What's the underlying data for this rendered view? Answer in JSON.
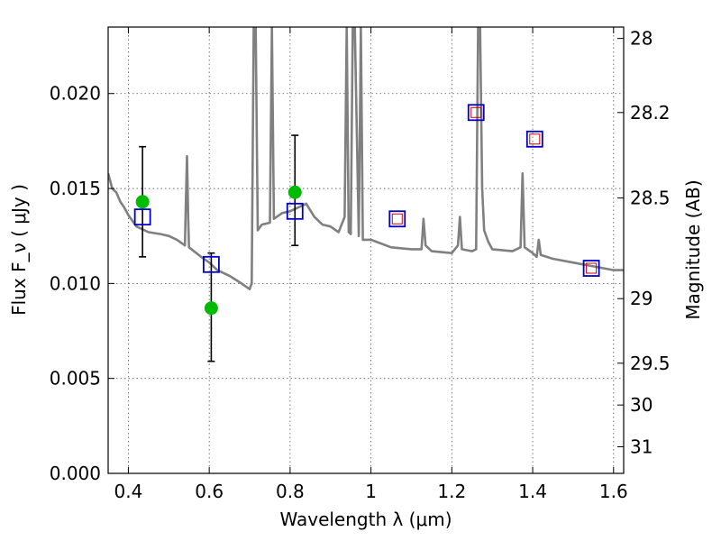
{
  "chart_data": {
    "type": "scatter",
    "xlabel": "Wavelength  λ (μm)",
    "ylabel": "Flux  F_ν  ( μJy )",
    "ylabel_right": "Magnitude (AB)",
    "xlim": [
      0.35,
      1.625
    ],
    "ylim": [
      0.0,
      0.0235
    ],
    "grid": true,
    "x_ticks": [
      0.4,
      0.6,
      0.8,
      1.0,
      1.2,
      1.4,
      1.6
    ],
    "x_tick_labels": [
      "0.4",
      "0.6",
      "0.8",
      "1",
      "1.2",
      "1.4",
      "1.6"
    ],
    "y_ticks": [
      0.0,
      0.005,
      0.01,
      0.015,
      0.02
    ],
    "y_tick_labels": [
      "0.000",
      "0.005",
      "0.010",
      "0.015",
      "0.020"
    ],
    "right_axis_ticks": [
      {
        "flux": 0.0229,
        "label": "28"
      },
      {
        "flux": 0.019,
        "label": "28.2"
      },
      {
        "flux": 0.0145,
        "label": "28.5"
      },
      {
        "flux": 0.0092,
        "label": "29"
      },
      {
        "flux": 0.0058,
        "label": "29.5"
      },
      {
        "flux": 0.0036,
        "label": "30"
      },
      {
        "flux": 0.0014,
        "label": "31"
      }
    ],
    "colors": {
      "template": "#808080",
      "model_squares": "#0000cc",
      "model_inner_squares": "#cc0000",
      "observed_points": "#00bb00",
      "error_bars": "#000000",
      "grid": "#555555"
    },
    "series": [
      {
        "marker": "line",
        "x": [
          0.35,
          0.36,
          0.37,
          0.38,
          0.39,
          0.4,
          0.42,
          0.45,
          0.48,
          0.5,
          0.52,
          0.54,
          0.542,
          0.545,
          0.548,
          0.55,
          0.58,
          0.6,
          0.62,
          0.65,
          0.68,
          0.7,
          0.705,
          0.71,
          0.715,
          0.72,
          0.73,
          0.75,
          0.755,
          0.76,
          0.78,
          0.8,
          0.82,
          0.84,
          0.86,
          0.88,
          0.9,
          0.92,
          0.935,
          0.94,
          0.945,
          0.95,
          0.955,
          0.96,
          0.97,
          0.975,
          0.98,
          1.0,
          1.05,
          1.1,
          1.125,
          1.13,
          1.135,
          1.15,
          1.2,
          1.215,
          1.22,
          1.225,
          1.25,
          1.26,
          1.265,
          1.27,
          1.275,
          1.28,
          1.29,
          1.3,
          1.35,
          1.37,
          1.375,
          1.38,
          1.4,
          1.41,
          1.415,
          1.42,
          1.45,
          1.5,
          1.55,
          1.6,
          1.625
        ],
        "y": [
          0.0158,
          0.015,
          0.0148,
          0.0143,
          0.014,
          0.0136,
          0.013,
          0.0127,
          0.0126,
          0.0125,
          0.0123,
          0.012,
          0.014,
          0.0167,
          0.0135,
          0.0119,
          0.0114,
          0.0111,
          0.0107,
          0.0104,
          0.01,
          0.0097,
          0.01,
          0.0235,
          0.0235,
          0.0128,
          0.0131,
          0.0132,
          0.0235,
          0.0134,
          0.0137,
          0.0138,
          0.014,
          0.0142,
          0.0135,
          0.0131,
          0.013,
          0.0127,
          0.0135,
          0.0235,
          0.0127,
          0.0126,
          0.0235,
          0.0235,
          0.0125,
          0.0235,
          0.0123,
          0.0123,
          0.0119,
          0.0118,
          0.0118,
          0.0134,
          0.012,
          0.0117,
          0.0116,
          0.012,
          0.0135,
          0.0118,
          0.0117,
          0.0118,
          0.0235,
          0.0235,
          0.015,
          0.0128,
          0.0122,
          0.0118,
          0.0117,
          0.0119,
          0.0158,
          0.0119,
          0.0116,
          0.0114,
          0.0123,
          0.0115,
          0.0113,
          0.0111,
          0.0109,
          0.0107,
          0.0107
        ]
      },
      {
        "marker": "square",
        "x": [
          0.435,
          0.605,
          0.812,
          1.065,
          1.26,
          1.405,
          1.545
        ],
        "y": [
          0.0135,
          0.011,
          0.0138,
          0.0134,
          0.019,
          0.0176,
          0.0108
        ]
      },
      {
        "marker": "inner-square",
        "x": [
          1.065,
          1.26,
          1.405,
          1.545
        ],
        "y": [
          0.0134,
          0.019,
          0.0176,
          0.0108
        ]
      },
      {
        "marker": "circle",
        "x": [
          0.435,
          0.605,
          0.812
        ],
        "y": [
          0.0143,
          0.0087,
          0.0148
        ],
        "yerr_low": [
          0.0114,
          0.0059,
          0.012
        ],
        "yerr_high": [
          0.0172,
          0.0116,
          0.0178
        ]
      }
    ]
  }
}
